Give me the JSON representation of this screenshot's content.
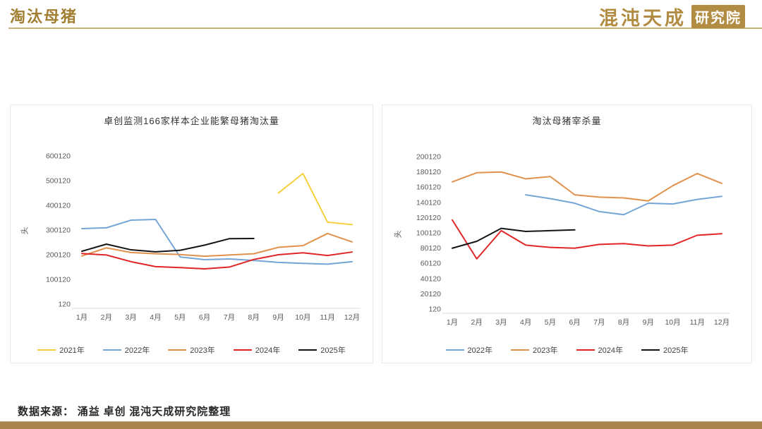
{
  "page": {
    "title": "淘汰母猪",
    "logo": {
      "brand": "混沌天成",
      "badge": "研究院"
    },
    "source_note": "数据来源： 涌益 卓创 混沌天成研究院整理",
    "colors": {
      "accent_gold": "#A27E33",
      "logo_gold": "#B28C42",
      "bottom_bar": "#A9834E",
      "panel_border": "#E8E8E8",
      "axis_text": "#595959"
    }
  },
  "chart_data": [
    {
      "type": "line",
      "title": "卓创监测166家样本企业能繁母猪淘汰量",
      "ylabel": "头",
      "xlabel": "",
      "grid": false,
      "legend_position": "bottom",
      "categories": [
        "1月",
        "2月",
        "3月",
        "4月",
        "5月",
        "6月",
        "7月",
        "8月",
        "9月",
        "10月",
        "11月",
        "12月"
      ],
      "ylim": [
        120,
        600120
      ],
      "yticks": [
        "120",
        "100120",
        "200120",
        "300120",
        "400120",
        "500120",
        "600120"
      ],
      "series": [
        {
          "name": "2021年",
          "color": "#F6CF3F",
          "values": [
            null,
            null,
            null,
            null,
            null,
            null,
            null,
            null,
            450000,
            529000,
            332000,
            322000
          ]
        },
        {
          "name": "2022年",
          "color": "#74A5D6",
          "values": [
            306000,
            309000,
            340000,
            343000,
            191000,
            180000,
            183000,
            177000,
            169000,
            165000,
            162000,
            172000
          ]
        },
        {
          "name": "2023年",
          "color": "#E0924D",
          "values": [
            195000,
            228000,
            209000,
            204000,
            201000,
            194000,
            199000,
            204000,
            230000,
            237000,
            286000,
            252000
          ]
        },
        {
          "name": "2024年",
          "color": "#E02627",
          "values": [
            205000,
            199000,
            172000,
            152000,
            148000,
            143000,
            150000,
            181000,
            200000,
            208000,
            197000,
            211000
          ]
        },
        {
          "name": "2025年",
          "color": "#141414",
          "values": [
            214000,
            243000,
            220000,
            212000,
            218000,
            239000,
            265000,
            266000,
            null,
            null,
            null,
            null
          ]
        }
      ]
    },
    {
      "type": "line",
      "title": "淘汰母猪宰杀量",
      "ylabel": "头",
      "xlabel": "",
      "grid": false,
      "legend_position": "bottom",
      "categories": [
        "1月",
        "2月",
        "3月",
        "4月",
        "5月",
        "6月",
        "7月",
        "8月",
        "9月",
        "10月",
        "11月",
        "12月"
      ],
      "ylim": [
        120,
        200120
      ],
      "yticks": [
        "120",
        "20120",
        "40120",
        "60120",
        "80120",
        "100120",
        "120120",
        "140120",
        "160120",
        "180120",
        "200120"
      ],
      "series": [
        {
          "name": "2022年",
          "color": "#74A5D6",
          "values": [
            null,
            null,
            null,
            150000,
            145000,
            139000,
            128000,
            124000,
            139000,
            138000,
            144000,
            148000
          ]
        },
        {
          "name": "2023年",
          "color": "#E0924D",
          "values": [
            167000,
            179000,
            180000,
            171000,
            174000,
            150000,
            147000,
            146000,
            142000,
            162000,
            178000,
            165000
          ]
        },
        {
          "name": "2024年",
          "color": "#E02627",
          "values": [
            117000,
            66000,
            103000,
            84000,
            81000,
            80000,
            85000,
            86000,
            83000,
            84000,
            97000,
            99000
          ]
        },
        {
          "name": "2025年",
          "color": "#141414",
          "values": [
            80000,
            89000,
            106000,
            102000,
            103000,
            104000,
            null,
            null,
            null,
            null,
            null,
            null
          ]
        }
      ]
    }
  ]
}
